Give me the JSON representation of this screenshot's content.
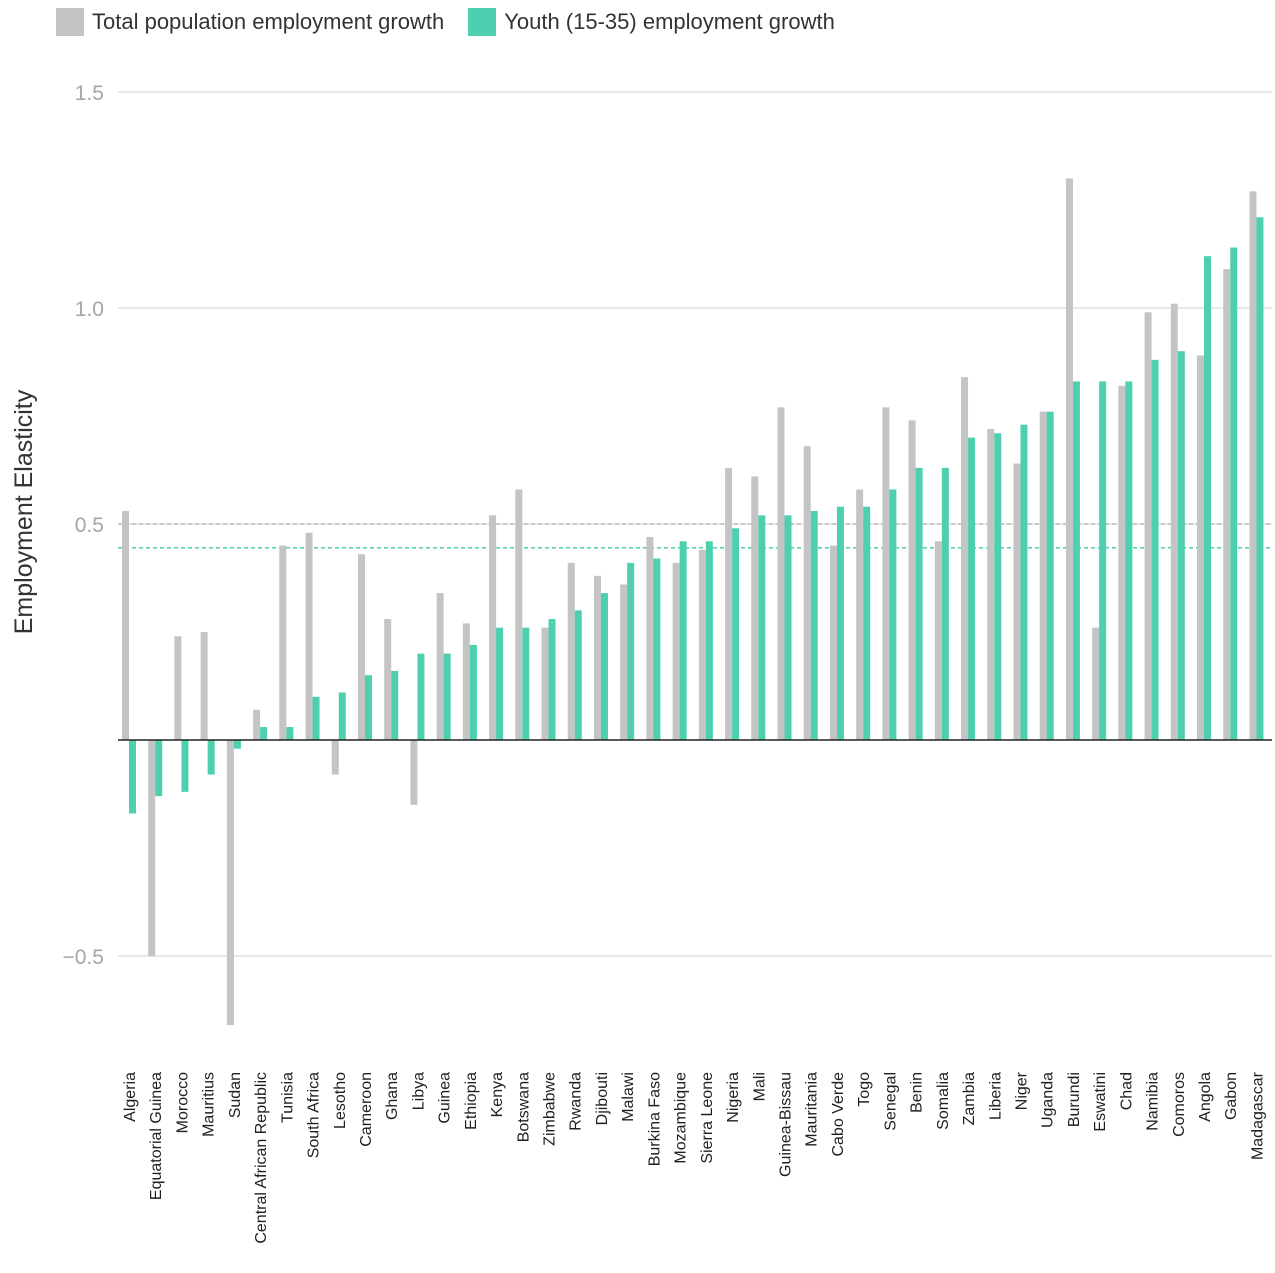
{
  "chart_data": {
    "type": "bar",
    "title": "",
    "xlabel": "",
    "ylabel": "Employment Elasticity",
    "ylim": [
      -0.65,
      1.5
    ],
    "yticks": [
      1.5,
      1.0,
      0.5,
      -0.5
    ],
    "ytick_labels": [
      "1.5",
      "1.0",
      "0.5",
      "−0.5"
    ],
    "grid": true,
    "legend_position": "top-left",
    "colors": {
      "total": "#c4c4c4",
      "youth": "#4ecfb0",
      "total_ref": "#bdbdbd",
      "youth_ref": "#4ecfb0",
      "grid": "#e0e0e0",
      "axis": "#222222"
    },
    "reference_lines": {
      "total": 0.5,
      "youth": 0.445
    },
    "categories": [
      "Algeria",
      "Equatorial Guinea",
      "Morocco",
      "Mauritius",
      "Sudan",
      "Central African Republic",
      "Tunisia",
      "South Africa",
      "Lesotho",
      "Cameroon",
      "Ghana",
      "Libya",
      "Guinea",
      "Ethiopia",
      "Kenya",
      "Botswana",
      "Zimbabwe",
      "Rwanda",
      "Djibouti",
      "Malawi",
      "Burkina Faso",
      "Mozambique",
      "Sierra Leone",
      "Nigeria",
      "Mali",
      "Guinea-Bissau",
      "Mauritania",
      "Cabo Verde",
      "Togo",
      "Senegal",
      "Benin",
      "Somalia",
      "Zambia",
      "Liberia",
      "Niger",
      "Uganda",
      "Burundi",
      "Eswatini",
      "Chad",
      "Namibia",
      "Comoros",
      "Angola",
      "Gabon",
      "Madagascar"
    ],
    "series": [
      {
        "name": "Total population employment growth",
        "key": "total",
        "values": [
          0.53,
          -0.5,
          0.24,
          0.25,
          -0.66,
          0.07,
          0.45,
          0.48,
          -0.08,
          0.43,
          0.28,
          -0.15,
          0.34,
          0.27,
          0.52,
          0.58,
          0.26,
          0.41,
          0.38,
          0.36,
          0.47,
          0.41,
          0.44,
          0.63,
          0.61,
          0.77,
          0.68,
          0.45,
          0.58,
          0.77,
          0.74,
          0.46,
          0.84,
          0.72,
          0.64,
          0.76,
          1.3,
          0.26,
          0.82,
          0.99,
          1.01,
          0.89,
          1.09,
          1.27
        ]
      },
      {
        "name": "Youth (15-35) employment growth",
        "key": "youth",
        "values": [
          -0.17,
          -0.13,
          -0.12,
          -0.08,
          -0.02,
          0.03,
          0.03,
          0.1,
          0.11,
          0.15,
          0.16,
          0.2,
          0.2,
          0.22,
          0.26,
          0.26,
          0.28,
          0.3,
          0.34,
          0.41,
          0.42,
          0.46,
          0.46,
          0.49,
          0.52,
          0.52,
          0.53,
          0.54,
          0.54,
          0.58,
          0.63,
          0.63,
          0.7,
          0.71,
          0.73,
          0.76,
          0.83,
          0.83,
          0.83,
          0.88,
          0.9,
          1.12,
          1.14,
          1.21
        ]
      }
    ]
  }
}
